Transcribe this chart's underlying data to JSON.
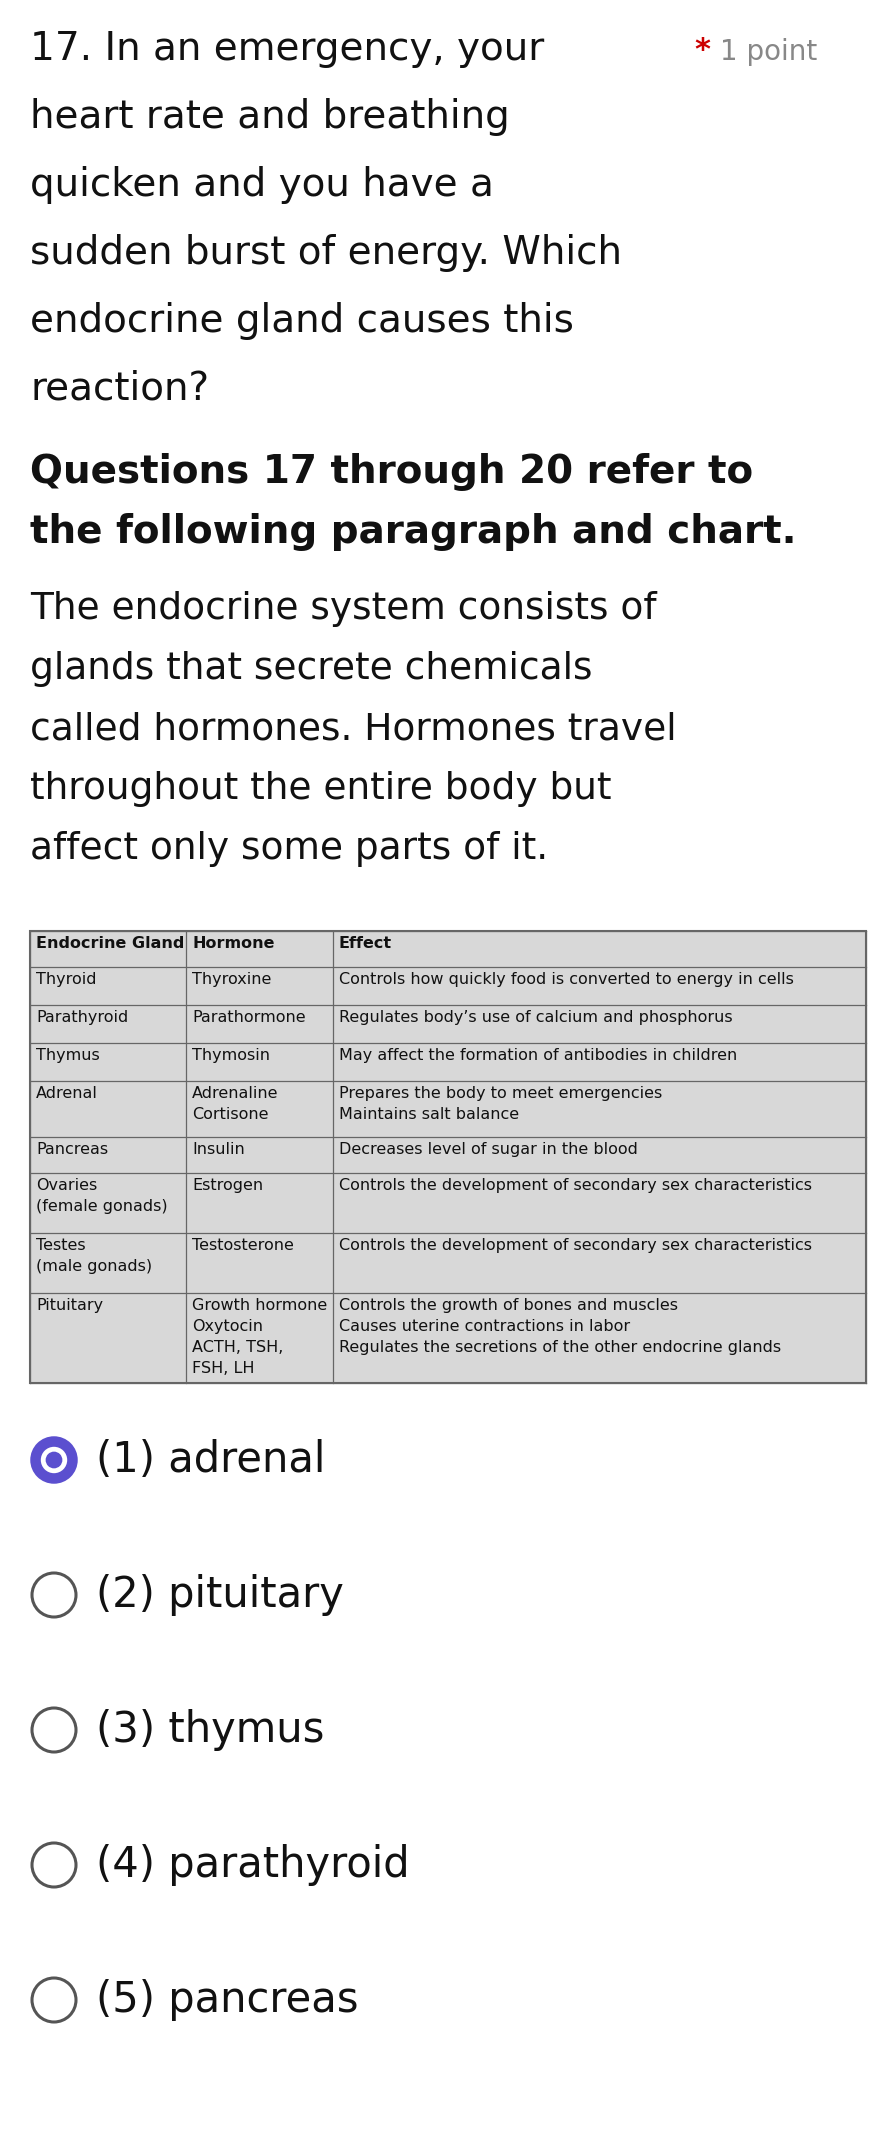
{
  "background_color": "#ffffff",
  "question_number": "17. ",
  "question_text_line1": "In an emergency, your",
  "question_lines": [
    "heart rate and breathing",
    "quicken and you have a",
    "sudden burst of energy. Which",
    "endocrine gland causes this",
    "reaction?"
  ],
  "points_star": "*",
  "points_text": "1 point",
  "bold_header_line1": "Questions 17 through 20 refer to",
  "bold_header_line2": "the following paragraph and chart.",
  "paragraph_lines": [
    "The endocrine system consists of",
    "glands that secrete chemicals",
    "called hormones. Hormones travel",
    "throughout the entire body but",
    "affect only some parts of it."
  ],
  "table_headers": [
    "Endocrine Gland",
    "Hormone",
    "Effect"
  ],
  "table_rows": [
    [
      "Thyroid",
      "Thyroxine",
      "Controls how quickly food is converted to energy in cells"
    ],
    [
      "Parathyroid",
      "Parathormone",
      "Regulates body’s use of calcium and phosphorus"
    ],
    [
      "Thymus",
      "Thymosin",
      "May affect the formation of antibodies in children"
    ],
    [
      "Adrenal",
      "Adrenaline\nCortisone",
      "Prepares the body to meet emergencies\nMaintains salt balance"
    ],
    [
      "Pancreas",
      "Insulin",
      "Decreases level of sugar in the blood"
    ],
    [
      "Ovaries\n(female gonads)",
      "Estrogen",
      "Controls the development of secondary sex characteristics"
    ],
    [
      "Testes\n(male gonads)",
      "Testosterone",
      "Controls the development of secondary sex characteristics"
    ],
    [
      "Pituitary",
      "Growth hormone\nOxytocin\nACTH, TSH,\nFSH, LH",
      "Controls the growth of bones and muscles\nCauses uterine contractions in labor\nRegulates the secretions of the other endocrine glands"
    ]
  ],
  "options": [
    {
      "number": "(1)",
      "text": "adrenal",
      "selected": true
    },
    {
      "number": "(2)",
      "text": "pituitary",
      "selected": false
    },
    {
      "number": "(3)",
      "text": "thymus",
      "selected": false
    },
    {
      "number": "(4)",
      "text": "parathyroid",
      "selected": false
    },
    {
      "number": "(5)",
      "text": "pancreas",
      "selected": false
    }
  ],
  "selected_color": "#5b4fcf",
  "unselected_color": "#555555",
  "star_color": "#cc0000",
  "points_color": "#888888",
  "table_bg": "#d8d8d8",
  "table_border_color": "#666666",
  "text_color": "#111111",
  "q_fontsize": 28,
  "bold_fontsize": 28,
  "para_fontsize": 27,
  "table_fontsize": 11.5,
  "option_fontsize": 30
}
